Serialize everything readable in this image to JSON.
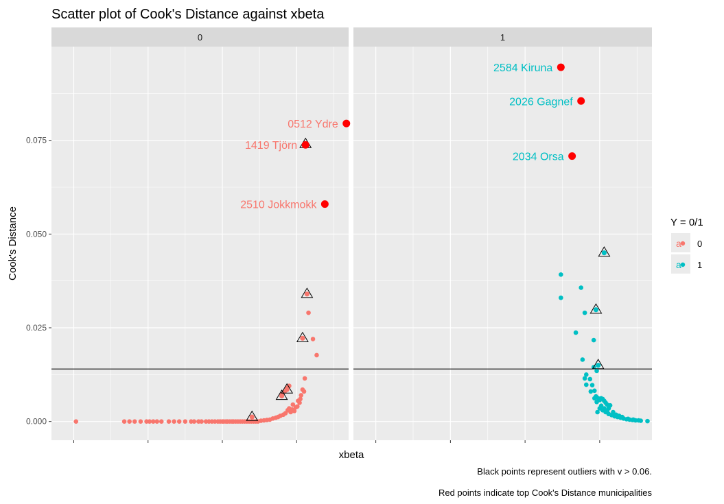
{
  "chart_data": {
    "type": "scatter",
    "title": "Scatter plot of Cook's Distance against xbeta",
    "xlabel": "xbeta",
    "ylabel": "Cook's Distance",
    "ylim": [
      -0.005,
      0.1
    ],
    "y_ticks": [
      0.0,
      0.025,
      0.05,
      0.075
    ],
    "y_tick_labels": [
      "0.000",
      "0.025",
      "0.050",
      "0.075"
    ],
    "x_tick_labels_shown": false,
    "reference_line_y": 0.014,
    "grid": true,
    "legend": {
      "title": "Y = 0/1",
      "position": "right",
      "glyph": "a",
      "entries": [
        {
          "label": "0",
          "color": "#F8766D"
        },
        {
          "label": "1",
          "color": "#00BFC4"
        }
      ]
    },
    "colors": {
      "y0": "#F8766D",
      "y1": "#00BFC4",
      "top": "#FF0000",
      "outlier_marker": "#000000"
    },
    "captions": [
      "Black points represent outliers with v > 0.06.",
      "Red points indicate top Cook's Distance municipalities"
    ],
    "panels": [
      {
        "strip": "0",
        "xlim": [
          -0.3,
          3.7
        ],
        "x_ticks": [
          0,
          1,
          2,
          3
        ],
        "points": [
          [
            0.03,
            0.0
          ],
          [
            0.68,
            0.0
          ],
          [
            0.75,
            0.0
          ],
          [
            0.82,
            0.0
          ],
          [
            0.9,
            0.0
          ],
          [
            0.98,
            0.0
          ],
          [
            1.02,
            0.0
          ],
          [
            1.07,
            0.0
          ],
          [
            1.12,
            0.0
          ],
          [
            1.18,
            0.0
          ],
          [
            1.28,
            0.0
          ],
          [
            1.35,
            0.0
          ],
          [
            1.42,
            0.0
          ],
          [
            1.5,
            0.0
          ],
          [
            1.58,
            0.0
          ],
          [
            1.62,
            0.0
          ],
          [
            1.68,
            0.0
          ],
          [
            1.72,
            0.0
          ],
          [
            1.78,
            0.0
          ],
          [
            1.82,
            0.0
          ],
          [
            1.86,
            0.0
          ],
          [
            1.9,
            0.0
          ],
          [
            1.94,
            0.0
          ],
          [
            1.97,
            0.0
          ],
          [
            2.0,
            0.0
          ],
          [
            2.02,
            0.0
          ],
          [
            2.05,
            0.0
          ],
          [
            2.07,
            0.0
          ],
          [
            2.1,
            0.0
          ],
          [
            2.13,
            0.0
          ],
          [
            2.15,
            0.0
          ],
          [
            2.18,
            0.0
          ],
          [
            2.21,
            0.0
          ],
          [
            2.24,
            0.0
          ],
          [
            2.27,
            0.0
          ],
          [
            2.3,
            0.0
          ],
          [
            2.33,
            0.0
          ],
          [
            2.36,
            0.0
          ],
          [
            2.39,
            0.0
          ],
          [
            2.42,
            0.0
          ],
          [
            2.45,
            0.0
          ],
          [
            2.48,
            0.0
          ],
          [
            2.52,
            0.0002
          ],
          [
            2.56,
            0.0003
          ],
          [
            2.6,
            0.0004
          ],
          [
            2.64,
            0.0005
          ],
          [
            2.68,
            0.0008
          ],
          [
            2.72,
            0.001
          ],
          [
            2.75,
            0.0012
          ],
          [
            2.78,
            0.0015
          ],
          [
            2.82,
            0.0018
          ],
          [
            2.85,
            0.0022
          ],
          [
            2.88,
            0.003
          ],
          [
            2.9,
            0.0035
          ],
          [
            2.92,
            0.0025
          ],
          [
            2.94,
            0.0032
          ],
          [
            2.95,
            0.0045
          ],
          [
            2.97,
            0.0028
          ],
          [
            2.99,
            0.0038
          ],
          [
            3.01,
            0.004
          ],
          [
            3.02,
            0.0055
          ],
          [
            3.04,
            0.005
          ],
          [
            3.05,
            0.006
          ],
          [
            3.06,
            0.007
          ],
          [
            3.08,
            0.0085
          ],
          [
            3.1,
            0.008
          ],
          [
            3.11,
            0.0115
          ],
          [
            3.16,
            0.029
          ],
          [
            3.22,
            0.022
          ],
          [
            3.27,
            0.0177
          ],
          [
            2.8,
            0.0072
          ],
          [
            2.84,
            0.008
          ],
          [
            2.87,
            0.009
          ],
          [
            2.9,
            0.0095
          ]
        ],
        "outliers": [
          [
            2.4,
            0.0012
          ],
          [
            2.8,
            0.0068
          ],
          [
            2.87,
            0.0085
          ],
          [
            3.08,
            0.0222
          ],
          [
            3.14,
            0.034
          ],
          [
            3.12,
            0.074
          ]
        ],
        "top_points": [
          {
            "x": 3.12,
            "y": 0.0738,
            "label": "1419 Tjörn"
          },
          {
            "x": 3.67,
            "y": 0.0795,
            "label": "0512 Ydre"
          },
          {
            "x": 3.38,
            "y": 0.058,
            "label": "2510 Jokkmokk"
          }
        ]
      },
      {
        "strip": "1",
        "xlim": [
          -0.3,
          3.7
        ],
        "x_ticks": [
          0,
          1,
          2,
          3
        ],
        "points": [
          [
            2.48,
            0.0392
          ],
          [
            2.48,
            0.033
          ],
          [
            2.75,
            0.0357
          ],
          [
            2.68,
            0.0237
          ],
          [
            2.8,
            0.029
          ],
          [
            2.92,
            0.0217
          ],
          [
            2.77,
            0.0165
          ],
          [
            2.82,
            0.0125
          ],
          [
            2.87,
            0.0113
          ],
          [
            2.8,
            0.0115
          ],
          [
            2.82,
            0.0098
          ],
          [
            2.92,
            0.0145
          ],
          [
            2.96,
            0.0135
          ],
          [
            2.9,
            0.0097
          ],
          [
            2.88,
            0.008
          ],
          [
            2.93,
            0.0082
          ],
          [
            2.95,
            0.0067
          ],
          [
            2.98,
            0.0062
          ],
          [
            3.0,
            0.0057
          ],
          [
            3.02,
            0.0062
          ],
          [
            3.04,
            0.006
          ],
          [
            3.06,
            0.0055
          ],
          [
            3.08,
            0.005
          ],
          [
            3.1,
            0.0045
          ],
          [
            2.93,
            0.0062
          ],
          [
            2.96,
            0.0052
          ],
          [
            3.0,
            0.0035
          ],
          [
            3.04,
            0.003
          ],
          [
            3.08,
            0.0025
          ],
          [
            3.12,
            0.002
          ],
          [
            3.16,
            0.0017
          ],
          [
            3.2,
            0.0014
          ],
          [
            3.24,
            0.0012
          ],
          [
            3.28,
            0.001
          ],
          [
            3.32,
            0.0008
          ],
          [
            3.36,
            0.0006
          ],
          [
            3.4,
            0.0005
          ],
          [
            3.44,
            0.0004
          ],
          [
            3.48,
            0.0003
          ],
          [
            3.55,
            0.0002
          ],
          [
            3.64,
            0.0001
          ],
          [
            3.12,
            0.0035
          ],
          [
            3.14,
            0.0043
          ],
          [
            3.18,
            0.0025
          ],
          [
            3.22,
            0.0018
          ],
          [
            2.97,
            0.0025
          ],
          [
            3.02,
            0.0042
          ],
          [
            3.06,
            0.0035
          ],
          [
            3.1,
            0.0028
          ],
          [
            3.26,
            0.0015
          ],
          [
            3.3,
            0.0012
          ],
          [
            3.38,
            0.0007
          ],
          [
            3.45,
            0.0005
          ],
          [
            3.52,
            0.0003
          ]
        ],
        "outliers": [
          [
            3.06,
            0.045
          ],
          [
            2.95,
            0.0298
          ],
          [
            2.98,
            0.015
          ]
        ],
        "top_points": [
          {
            "x": 2.48,
            "y": 0.0945,
            "label": "2584 Kiruna"
          },
          {
            "x": 2.75,
            "y": 0.0855,
            "label": "2026 Gagnef"
          },
          {
            "x": 2.63,
            "y": 0.0708,
            "label": "2034 Orsa"
          }
        ]
      }
    ]
  }
}
